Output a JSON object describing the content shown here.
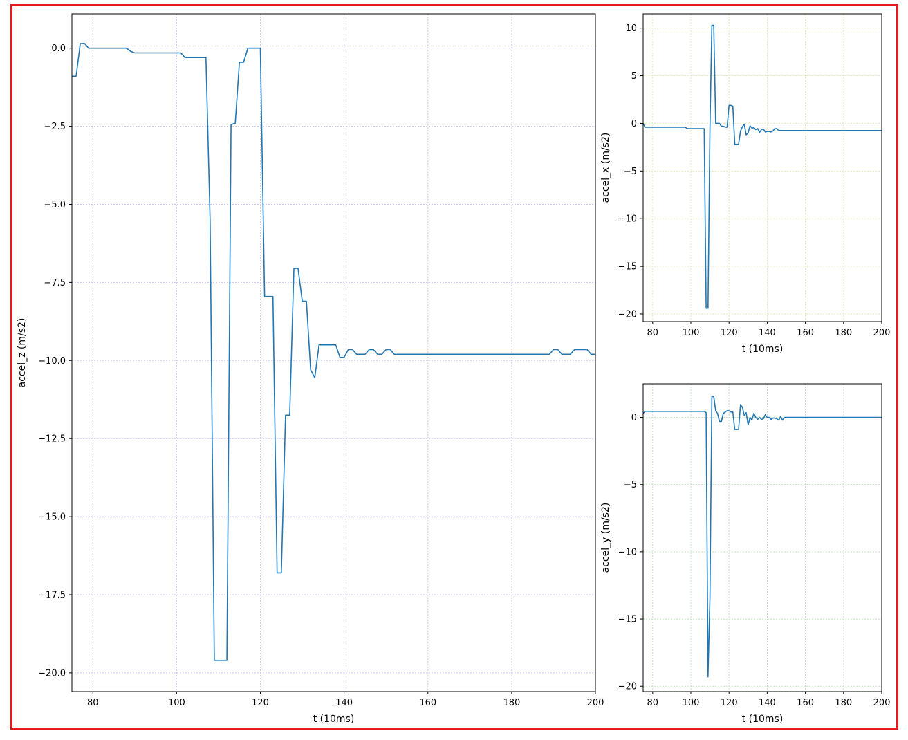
{
  "chart_data": [
    {
      "type": "line",
      "id": "z",
      "xlabel": "t (10ms)",
      "ylabel": "accel_z (m/s2)",
      "xlim": [
        75,
        200
      ],
      "ylim": [
        -20.6,
        1.1
      ],
      "xticks": [
        80,
        100,
        120,
        140,
        160,
        180,
        200
      ],
      "xtick_labels": [
        "80",
        "100",
        "120",
        "140",
        "160",
        "180",
        "200"
      ],
      "yticks": [
        0,
        -2.5,
        -5,
        -7.5,
        -10,
        -12.5,
        -15,
        -17.5,
        -20
      ],
      "ytick_labels": [
        "0.0",
        "−2.5",
        "−5.0",
        "−7.5",
        "−10.0",
        "−12.5",
        "−15.0",
        "−17.5",
        "−20.0"
      ],
      "grid": true,
      "grid_color": "#c8c8f5",
      "line_color": "#1f77b4",
      "x": [
        75,
        76,
        77,
        78,
        79,
        80,
        88,
        89,
        90,
        101,
        102,
        107,
        108,
        109,
        110,
        111,
        112,
        113,
        114,
        115,
        116,
        117,
        118,
        119,
        120,
        121,
        122,
        123,
        124,
        125,
        126,
        127,
        128,
        129,
        130,
        131,
        132,
        133,
        134,
        135,
        136,
        137,
        138,
        139,
        140,
        141,
        142,
        143,
        144,
        145,
        146,
        147,
        148,
        149,
        150,
        151,
        152,
        153,
        154,
        160,
        170,
        180,
        189,
        190,
        191,
        192,
        193,
        194,
        195,
        196,
        197,
        198,
        199,
        200
      ],
      "y": [
        -0.9,
        -0.9,
        0.15,
        0.15,
        0,
        0,
        0,
        -0.1,
        -0.15,
        -0.15,
        -0.3,
        -0.3,
        -5.5,
        -19.6,
        -19.6,
        -19.6,
        -19.6,
        -2.45,
        -2.4,
        -0.45,
        -0.45,
        0,
        0,
        0,
        0,
        -7.95,
        -7.95,
        -7.95,
        -16.8,
        -16.8,
        -11.75,
        -11.75,
        -7.05,
        -7.05,
        -8.1,
        -8.1,
        -10.3,
        -10.55,
        -9.5,
        -9.5,
        -9.5,
        -9.5,
        -9.5,
        -9.9,
        -9.9,
        -9.65,
        -9.65,
        -9.8,
        -9.8,
        -9.8,
        -9.65,
        -9.65,
        -9.8,
        -9.8,
        -9.65,
        -9.65,
        -9.8,
        -9.8,
        -9.8,
        -9.8,
        -9.8,
        -9.8,
        -9.8,
        -9.65,
        -9.65,
        -9.8,
        -9.8,
        -9.8,
        -9.65,
        -9.65,
        -9.65,
        -9.65,
        -9.8,
        -9.8
      ]
    },
    {
      "type": "line",
      "id": "x",
      "xlabel": "t (10ms)",
      "ylabel": "accel_x (m/s2)",
      "xlim": [
        75,
        200
      ],
      "ylim": [
        -20.8,
        11.5
      ],
      "xticks": [
        80,
        100,
        120,
        140,
        160,
        180,
        200
      ],
      "xtick_labels": [
        "80",
        "100",
        "120",
        "140",
        "160",
        "180",
        "200"
      ],
      "yticks": [
        10,
        5,
        0,
        -5,
        -10,
        -15,
        -20
      ],
      "ytick_labels": [
        "10",
        "5",
        "0",
        "−5",
        "−10",
        "−15",
        "−20"
      ],
      "grid": true,
      "grid_color": "#e8e8b8",
      "line_color": "#1f77b4",
      "x": [
        75,
        76,
        97,
        98,
        107,
        108,
        109,
        110,
        111,
        112,
        113,
        115,
        116,
        117,
        118,
        119,
        120,
        121,
        122,
        123,
        124,
        125,
        126,
        127,
        128,
        129,
        130,
        131,
        132,
        133,
        134,
        135,
        136,
        137,
        138,
        139,
        140,
        141,
        142,
        143,
        144,
        145,
        146,
        147,
        148,
        149,
        150,
        151,
        152,
        153,
        160,
        180,
        200
      ],
      "y": [
        0,
        -0.4,
        -0.4,
        -0.55,
        -0.55,
        -19.4,
        -19.4,
        -0.5,
        10.3,
        10.3,
        0,
        0,
        -0.3,
        -0.3,
        -0.4,
        -0.4,
        1.9,
        1.9,
        1.8,
        -2.2,
        -2.2,
        -2.2,
        -0.8,
        -0.35,
        -0.1,
        -1.2,
        -1,
        -0.25,
        -0.5,
        -0.45,
        -0.65,
        -0.55,
        -0.95,
        -0.65,
        -0.6,
        -0.9,
        -0.85,
        -0.85,
        -0.9,
        -0.8,
        -0.55,
        -0.55,
        -0.75,
        -0.75,
        -0.75,
        -0.75,
        -0.75,
        -0.75,
        -0.75,
        -0.75,
        -0.75,
        -0.75,
        -0.75
      ]
    },
    {
      "type": "line",
      "id": "y",
      "xlabel": "t (10ms)",
      "ylabel": "accel_y (m/s2)",
      "xlim": [
        75,
        200
      ],
      "ylim": [
        -20.4,
        2.5
      ],
      "xticks": [
        80,
        100,
        120,
        140,
        160,
        180,
        200
      ],
      "xtick_labels": [
        "80",
        "100",
        "120",
        "140",
        "160",
        "180",
        "200"
      ],
      "yticks": [
        0,
        -5,
        -10,
        -15,
        -20
      ],
      "ytick_labels": [
        "0",
        "−5",
        "−10",
        "−15",
        "−20"
      ],
      "grid": true,
      "grid_color": "#c4e4c4",
      "line_color": "#1f77b4",
      "x": [
        75,
        76,
        107,
        108,
        109,
        110,
        111,
        112,
        113,
        114,
        115,
        116,
        117,
        118,
        119,
        120,
        121,
        122,
        123,
        124,
        125,
        126,
        127,
        128,
        129,
        130,
        131,
        132,
        133,
        134,
        135,
        136,
        137,
        138,
        139,
        140,
        141,
        142,
        143,
        144,
        145,
        146,
        147,
        148,
        149,
        150,
        151,
        152,
        153,
        160,
        180,
        200
      ],
      "y": [
        0.3,
        0.45,
        0.45,
        0.35,
        -19.3,
        -13.4,
        1.55,
        1.55,
        0.5,
        0.3,
        -0.3,
        -0.3,
        0.3,
        0.4,
        0.5,
        0.5,
        0.4,
        0.4,
        -0.9,
        -0.9,
        -0.9,
        0.95,
        0.75,
        0.15,
        0.35,
        -0.55,
        0,
        -0.2,
        0.3,
        0,
        -0.15,
        0,
        -0.15,
        -0.1,
        0.2,
        0,
        0,
        -0.15,
        -0.05,
        -0.05,
        -0.1,
        -0.2,
        0.05,
        -0.2,
        0,
        0,
        0,
        0,
        0,
        0,
        0,
        0
      ]
    }
  ]
}
